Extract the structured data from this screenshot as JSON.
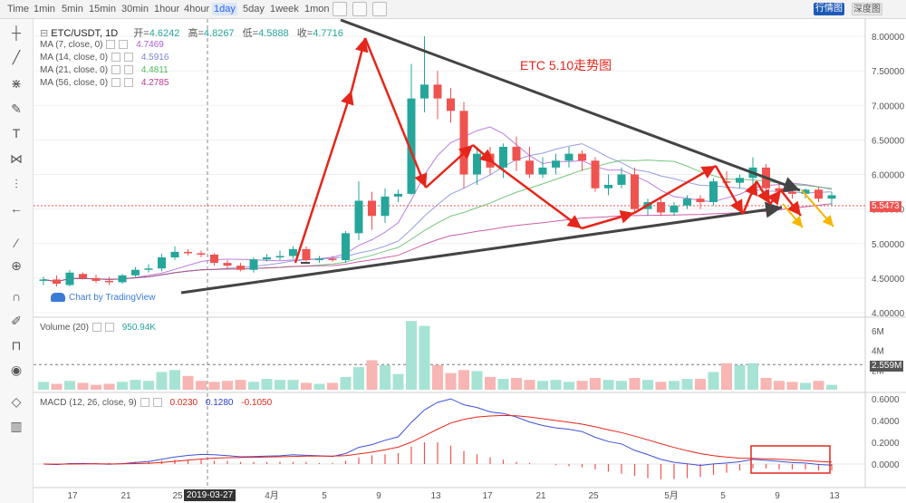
{
  "toolbar": {
    "timeframes": [
      "Time",
      "1min",
      "5min",
      "15min",
      "30min",
      "1hour",
      "4hour",
      "1day",
      "5day",
      "1week",
      "1mon"
    ],
    "active": "1day",
    "btn_line": "行情图",
    "btn_depth": "深度图"
  },
  "symbol": {
    "name": "ETC/USDT, 1D",
    "open_label": "开=",
    "open": "4.6242",
    "high_label": "高=",
    "high": "4.8267",
    "low_label": "低=",
    "low": "4.5888",
    "close_label": "收=",
    "close": "4.7716"
  },
  "ma": [
    {
      "label": "MA (7, close, 0)",
      "value": "4.7469",
      "color": "#a95ed6"
    },
    {
      "label": "MA (14, close, 0)",
      "value": "4.5916",
      "color": "#7a84d8"
    },
    {
      "label": "MA (21, close, 0)",
      "value": "4.4811",
      "color": "#54b85e"
    },
    {
      "label": "MA (56, close, 0)",
      "value": "4.2785",
      "color": "#c2378f"
    }
  ],
  "annotation_title": "ETC 5.10走势图",
  "watermark": "Chart by TradingView",
  "last_price": "5.5473",
  "volume": {
    "label": "Volume (20)",
    "value": "950.94K",
    "ma_value": "2.559M"
  },
  "macd": {
    "label": "MACD (12, 26, close, 9)",
    "v1": "0.0230",
    "v2": "0.1280",
    "v3": "-0.1050"
  },
  "price_axis": [
    "8.00000",
    "7.50000",
    "7.00000",
    "6.50000",
    "6.00000",
    "5.50000",
    "5.00000",
    "4.50000",
    "4.00000"
  ],
  "vol_axis": [
    "6M",
    "4M",
    "2M"
  ],
  "macd_axis": [
    "0.6000",
    "0.4000",
    "0.2000",
    "0.0000"
  ],
  "x_axis": [
    "17",
    "21",
    "25",
    "4月",
    "5",
    "9",
    "13",
    "17",
    "21",
    "25",
    "5月",
    "5",
    "9",
    "13"
  ],
  "crosshair_date": "2019-03-27",
  "chart_data": {
    "type": "candlestick",
    "candles": [
      [
        4.46,
        4.52,
        4.4,
        4.48
      ],
      [
        4.48,
        4.54,
        4.38,
        4.42
      ],
      [
        4.4,
        4.62,
        4.38,
        4.58
      ],
      [
        4.56,
        4.58,
        4.48,
        4.5
      ],
      [
        4.5,
        4.55,
        4.43,
        4.46
      ],
      [
        4.46,
        4.52,
        4.4,
        4.44
      ],
      [
        4.44,
        4.56,
        4.42,
        4.54
      ],
      [
        4.54,
        4.66,
        4.52,
        4.62
      ],
      [
        4.62,
        4.7,
        4.58,
        4.64
      ],
      [
        4.64,
        4.85,
        4.6,
        4.8
      ],
      [
        4.8,
        4.96,
        4.76,
        4.88
      ],
      [
        4.88,
        4.92,
        4.83,
        4.86
      ],
      [
        4.86,
        4.9,
        4.8,
        4.84
      ],
      [
        4.84,
        4.86,
        4.68,
        4.72
      ],
      [
        4.72,
        4.76,
        4.64,
        4.68
      ],
      [
        4.68,
        4.72,
        4.6,
        4.62
      ],
      [
        4.62,
        4.8,
        4.58,
        4.77
      ],
      [
        4.77,
        4.85,
        4.74,
        4.8
      ],
      [
        4.8,
        4.9,
        4.76,
        4.82
      ],
      [
        4.82,
        4.96,
        4.78,
        4.92
      ],
      [
        4.92,
        4.96,
        4.74,
        4.76
      ],
      [
        4.76,
        4.82,
        4.72,
        4.78
      ],
      [
        4.78,
        4.82,
        4.74,
        4.76
      ],
      [
        4.76,
        5.18,
        4.72,
        5.15
      ],
      [
        5.15,
        5.9,
        5.05,
        5.62
      ],
      [
        5.62,
        5.75,
        5.2,
        5.4
      ],
      [
        5.4,
        5.8,
        5.3,
        5.68
      ],
      [
        5.68,
        5.78,
        5.6,
        5.72
      ],
      [
        5.72,
        7.6,
        5.7,
        7.1
      ],
      [
        7.1,
        8.0,
        6.9,
        7.3
      ],
      [
        7.3,
        7.5,
        6.8,
        7.1
      ],
      [
        7.1,
        7.25,
        6.75,
        6.92
      ],
      [
        6.92,
        7.05,
        5.8,
        6.0
      ],
      [
        6.0,
        6.4,
        5.85,
        6.3
      ],
      [
        6.3,
        6.4,
        6.0,
        6.1
      ],
      [
        6.1,
        6.45,
        5.95,
        6.4
      ],
      [
        6.4,
        6.55,
        6.05,
        6.2
      ],
      [
        6.2,
        6.4,
        5.95,
        6.0
      ],
      [
        6.0,
        6.25,
        5.95,
        6.1
      ],
      [
        6.1,
        6.3,
        6.0,
        6.2
      ],
      [
        6.2,
        6.4,
        6.1,
        6.3
      ],
      [
        6.3,
        6.35,
        6.05,
        6.2
      ],
      [
        6.2,
        6.25,
        5.75,
        5.8
      ],
      [
        5.8,
        6.0,
        5.7,
        5.85
      ],
      [
        5.85,
        6.1,
        5.8,
        6.0
      ],
      [
        6.0,
        6.1,
        5.45,
        5.5
      ],
      [
        5.5,
        5.65,
        5.4,
        5.6
      ],
      [
        5.6,
        5.65,
        5.4,
        5.45
      ],
      [
        5.45,
        5.6,
        5.4,
        5.55
      ],
      [
        5.55,
        5.7,
        5.5,
        5.65
      ],
      [
        5.65,
        5.7,
        5.5,
        5.6
      ],
      [
        5.6,
        5.95,
        5.55,
        5.9
      ],
      [
        5.9,
        6.05,
        5.8,
        5.88
      ],
      [
        5.88,
        6.0,
        5.8,
        5.95
      ],
      [
        5.95,
        6.25,
        5.7,
        6.1
      ],
      [
        6.1,
        6.15,
        5.7,
        5.8
      ],
      [
        5.8,
        5.9,
        5.65,
        5.75
      ],
      [
        5.75,
        5.85,
        5.65,
        5.72
      ],
      [
        5.72,
        5.8,
        5.65,
        5.78
      ],
      [
        5.78,
        5.82,
        5.6,
        5.65
      ],
      [
        5.65,
        5.75,
        5.55,
        5.7
      ]
    ],
    "volume_millions": [
      0.8,
      0.6,
      0.9,
      0.7,
      0.5,
      0.6,
      0.8,
      1.0,
      0.9,
      1.8,
      2.0,
      1.4,
      0.9,
      0.8,
      0.9,
      1.0,
      0.8,
      1.1,
      1.0,
      1.0,
      0.7,
      0.6,
      0.7,
      1.3,
      2.3,
      3.0,
      2.5,
      1.6,
      7.0,
      6.5,
      2.5,
      1.7,
      2.0,
      1.9,
      1.3,
      1.1,
      1.2,
      1.0,
      0.9,
      1.0,
      0.8,
      0.9,
      1.2,
      1.0,
      0.9,
      1.2,
      1.0,
      0.8,
      0.9,
      1.1,
      1.1,
      1.8,
      2.7,
      2.5,
      2.7,
      1.2,
      0.9,
      0.8,
      0.7,
      0.9,
      0.5
    ],
    "macd_hist": [
      0.0,
      0.0,
      0.01,
      0.01,
      0.01,
      0.01,
      0.01,
      0.02,
      0.02,
      0.03,
      0.04,
      0.04,
      0.04,
      0.03,
      0.03,
      0.02,
      0.02,
      0.02,
      0.02,
      0.02,
      0.02,
      0.01,
      0.01,
      0.03,
      0.06,
      0.08,
      0.09,
      0.1,
      0.16,
      0.2,
      0.2,
      0.17,
      0.12,
      0.09,
      0.06,
      0.04,
      0.02,
      0.01,
      0.0,
      -0.01,
      -0.02,
      -0.03,
      -0.05,
      -0.07,
      -0.09,
      -0.11,
      -0.13,
      -0.14,
      -0.14,
      -0.13,
      -0.12,
      -0.1,
      -0.08,
      -0.06,
      -0.04,
      -0.04,
      -0.05,
      -0.05,
      -0.05,
      -0.06,
      -0.06
    ],
    "price_ylim": [
      4.0,
      8.0
    ],
    "macd_ylim": [
      -0.15,
      0.65
    ]
  },
  "colors": {
    "up": "#26a69a",
    "down": "#ef5350",
    "up_soft": "#a7e3d4",
    "down_soft": "#f7b5b3",
    "red": "#e5261b",
    "dark": "#444444",
    "orange": "#f7b500"
  }
}
